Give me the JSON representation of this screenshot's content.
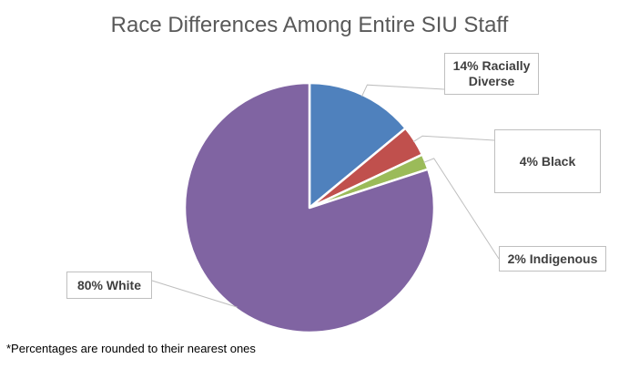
{
  "chart_data": {
    "type": "pie",
    "title": "Race Differences Among Entire SIU Staff",
    "slices": [
      {
        "label": "14% Racially Diverse",
        "value": 14,
        "color": "#4F81BD"
      },
      {
        "label": "4% Black",
        "value": 4,
        "color": "#C0504D"
      },
      {
        "label": "2% Indigenous",
        "value": 2,
        "color": "#9BBB59"
      },
      {
        "label": "80% White",
        "value": 80,
        "color": "#8064A2"
      }
    ],
    "legend": "none",
    "footnote": "*Percentages are rounded to their nearest ones"
  }
}
